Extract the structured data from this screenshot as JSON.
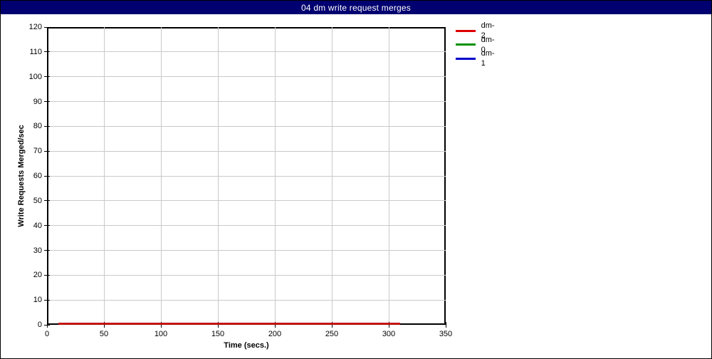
{
  "window": {
    "title": "04 dm write request merges",
    "title_bar_color": "#000070",
    "title_text_color": "#ffffff"
  },
  "chart_data": {
    "type": "line",
    "title": "04 dm write request merges",
    "xlabel": "Time (secs.)",
    "ylabel": "Write Requests Merged/sec",
    "xlim": [
      0,
      350
    ],
    "ylim": [
      0,
      120
    ],
    "xticks": [
      0,
      50,
      100,
      150,
      200,
      250,
      300,
      350
    ],
    "yticks": [
      0,
      10,
      20,
      30,
      40,
      50,
      60,
      70,
      80,
      90,
      100,
      110,
      120
    ],
    "grid": true,
    "grid_color": "#c9c9c9",
    "legend_position": "outside-top-right",
    "series": [
      {
        "name": "dm-2",
        "color": "#dd0000",
        "x": [
          10,
          310
        ],
        "y": [
          0,
          0
        ]
      },
      {
        "name": "dm-0",
        "color": "#009000",
        "x": [
          10,
          310
        ],
        "y": [
          0,
          0
        ]
      },
      {
        "name": "dm-1",
        "color": "#0000cc",
        "x": [
          10,
          310
        ],
        "y": [
          0,
          0
        ]
      }
    ]
  }
}
